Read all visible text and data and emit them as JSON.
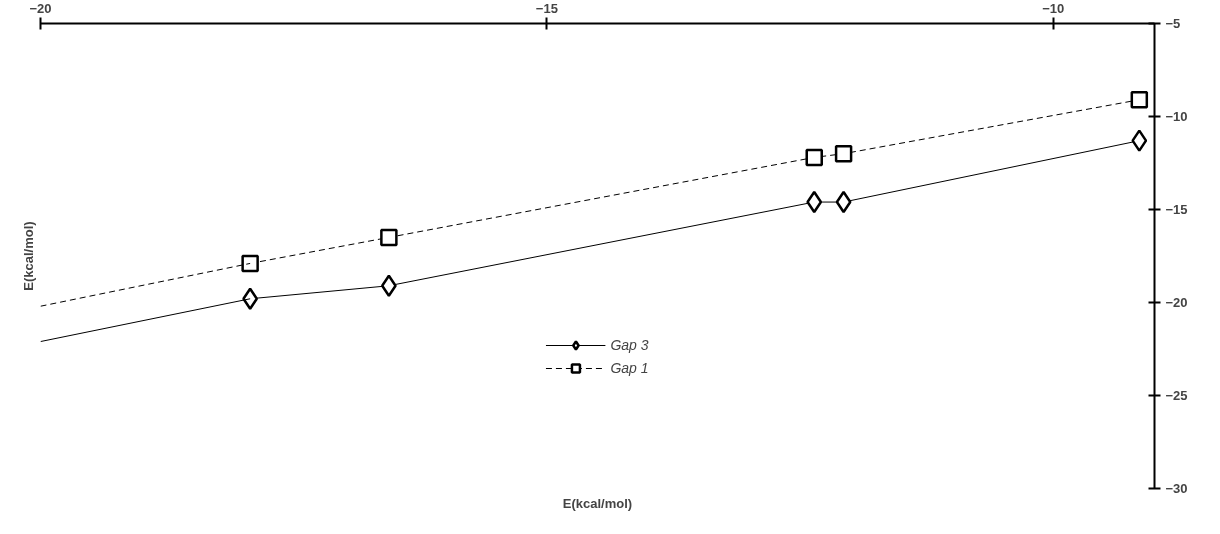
{
  "chart_data": {
    "type": "line",
    "xlabel": "E(kcal/mol)",
    "ylabel": "E(kcal/mol)",
    "xlim": [
      -20,
      -9
    ],
    "ylim": [
      -30,
      -5
    ],
    "xticks": [
      -20,
      -15,
      -10
    ],
    "yticks": [
      -30,
      -25,
      -20,
      -15,
      -10,
      -5
    ],
    "grid": false,
    "legend": "bottom",
    "series": [
      {
        "name": "Gap 3",
        "color": "#000000",
        "marker": "diamond",
        "line_style": "solid",
        "x": [
          -17.93,
          -16.56,
          -12.36,
          -12.07,
          -9.15
        ],
        "values": [
          -19.8,
          -19.1,
          -14.6,
          -14.6,
          -11.3
        ]
      },
      {
        "name": "Gap 1",
        "color": "#000000",
        "marker": "square",
        "line_style": "dashed",
        "x": [
          -17.93,
          -16.56,
          -12.36,
          -12.07,
          -9.15
        ],
        "values": [
          -17.9,
          -16.5,
          -12.2,
          -12.0,
          -9.1
        ]
      },
      {
        "color": "#000000",
        "marker": "none",
        "line_style": "solid",
        "x": [
          -20,
          -17.93
        ],
        "values": [
          -22.1,
          -19.8
        ]
      },
      {
        "color": "#000000",
        "marker": "none",
        "line_style": "dashed",
        "x": [
          -20,
          -17.93
        ],
        "values": [
          -20.2,
          -17.9
        ]
      }
    ]
  }
}
